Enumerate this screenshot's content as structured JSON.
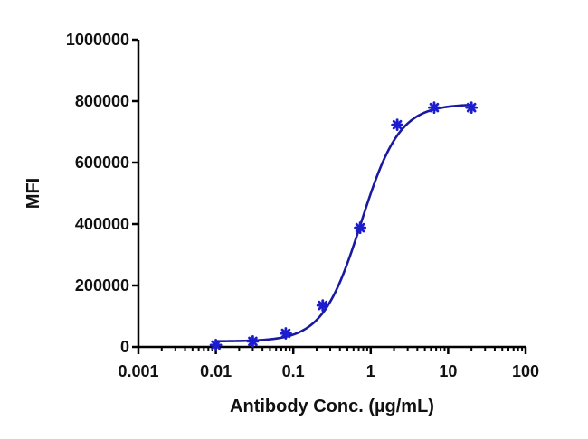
{
  "chart_data": {
    "type": "scatter",
    "title": "",
    "xlabel": "Antibody Conc. (µg/mL)",
    "ylabel": "MFI",
    "xscale": "log",
    "xlim": [
      0.001,
      100
    ],
    "ylim": [
      0,
      1000000
    ],
    "x_ticks": [
      "0.001",
      "0.01",
      "0.1",
      "1",
      "10",
      "100"
    ],
    "y_ticks": [
      "0",
      "200000",
      "400000",
      "600000",
      "800000",
      "1000000"
    ],
    "grid": false,
    "legend": null,
    "series": [
      {
        "name": "MFI",
        "marker": "asterisk",
        "color": "#1a1ad0",
        "fit": "4PL sigmoid curve",
        "fit_color": "#1a1aa0",
        "x": [
          0.01,
          0.03,
          0.08,
          0.24,
          0.73,
          2.2,
          6.6,
          20
        ],
        "y": [
          6000,
          18000,
          44000,
          135000,
          388000,
          723000,
          779000,
          779000
        ]
      }
    ]
  },
  "colors": {
    "curve": "#1a1aa0",
    "marker": "#1c1cd0",
    "axis": "#000000"
  }
}
